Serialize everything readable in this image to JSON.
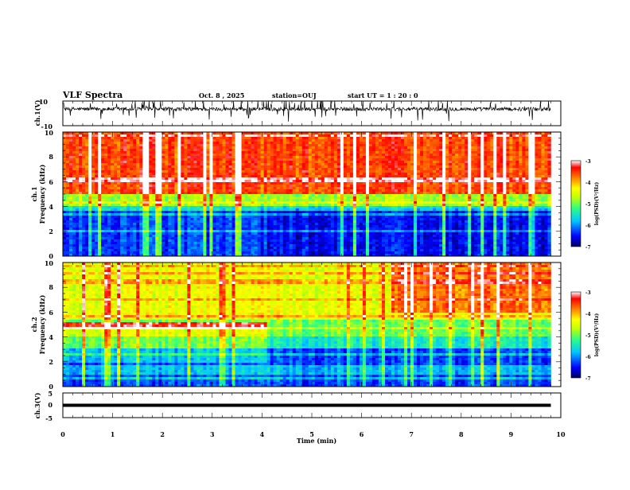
{
  "header": {
    "title": "VLF Spectra",
    "date": "Oct. 8 , 2025",
    "station": "station=OUJ",
    "start": "start UT = 1 : 20 : 0"
  },
  "chart_data": [
    {
      "type": "line",
      "name": "ch1-waveform",
      "ylabel": "ch.1(V)",
      "ylim": [
        -10,
        10
      ],
      "yticks": [
        "10",
        "-10"
      ],
      "xlim": [
        0,
        10
      ],
      "data_end_min": 9.8,
      "baseline_v": 3.5,
      "grid": false
    },
    {
      "type": "heatmap",
      "name": "ch1-spectrogram",
      "ylabel": "ch.1\nFrequency (kHz)",
      "ylim": [
        0,
        10
      ],
      "yticks": [
        "0",
        "2",
        "4",
        "6",
        "8",
        "10"
      ],
      "xlim": [
        0,
        10
      ],
      "data_end_min": 9.8,
      "colorbar": {
        "label": "log(PSD)(V²/Hz)",
        "range": [
          -7,
          -3
        ],
        "ticks": [
          "-3",
          "-4",
          "-5",
          "-6",
          "-7"
        ]
      }
    },
    {
      "type": "heatmap",
      "name": "ch2-spectrogram",
      "ylabel": "ch.2\nFrequency (kHz)",
      "ylim": [
        0,
        10
      ],
      "yticks": [
        "0",
        "2",
        "4",
        "6",
        "8",
        "10"
      ],
      "xlim": [
        0,
        10
      ],
      "data_end_min": 9.8,
      "colorbar": {
        "label": "log(PSD)(V²/Hz)",
        "range": [
          -7,
          -3
        ],
        "ticks": [
          "-3",
          "-4",
          "-5",
          "-6",
          "-7"
        ]
      }
    },
    {
      "type": "line",
      "name": "ch3-waveform",
      "ylabel": "ch.3(V)",
      "ylim": [
        -5,
        5
      ],
      "yticks": [
        "5",
        "0",
        "-5"
      ],
      "xlim": [
        0,
        10
      ],
      "data_end_min": 9.8,
      "level_v": 0,
      "grid": false
    }
  ],
  "xaxis": {
    "label": "Time (min)",
    "ticks": [
      "0",
      "1",
      "2",
      "3",
      "4",
      "5",
      "6",
      "7",
      "8",
      "9",
      "10"
    ]
  },
  "colors": {
    "scale": [
      "#000080",
      "#0000ff",
      "#00c8ff",
      "#30ff80",
      "#c8ff00",
      "#ffff00",
      "#ff8000",
      "#ff0000",
      "#ffffff"
    ]
  }
}
